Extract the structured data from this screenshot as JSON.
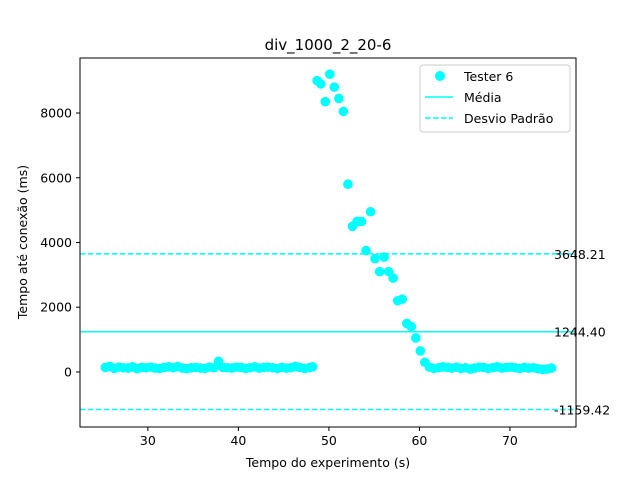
{
  "chart_data": {
    "type": "scatter",
    "title": "div_1000_2_20-6",
    "xlabel": "Tempo do experimento (s)",
    "ylabel": "Tempo até conexão (ms)",
    "xlim": [
      22.5,
      77.3
    ],
    "ylim": [
      -1700,
      9700
    ],
    "xticks": [
      30,
      40,
      50,
      60,
      70
    ],
    "yticks": [
      0,
      2000,
      4000,
      6000,
      8000
    ],
    "grid": false,
    "legend_position": "top-right",
    "colors": {
      "series": "#00ffff",
      "axes": "#000000"
    },
    "series": [
      {
        "name": "Tester 6",
        "x": [
          25.3,
          25.8,
          26.3,
          26.8,
          27.3,
          27.8,
          28.3,
          28.8,
          29.3,
          29.8,
          30.3,
          30.8,
          31.3,
          31.8,
          32.3,
          32.8,
          33.3,
          33.8,
          34.3,
          34.8,
          35.3,
          35.8,
          36.3,
          36.8,
          37.3,
          37.8,
          38.3,
          38.8,
          39.3,
          39.8,
          40.3,
          40.8,
          41.3,
          41.8,
          42.3,
          42.8,
          43.3,
          43.8,
          44.3,
          44.8,
          45.3,
          45.8,
          46.3,
          46.8,
          47.3,
          47.8,
          48.2,
          48.7,
          49.1,
          49.6,
          50.1,
          50.6,
          51.1,
          51.6,
          52.1,
          52.6,
          53.1,
          53.6,
          54.1,
          54.6,
          55.1,
          55.6,
          56.1,
          56.6,
          57.1,
          57.6,
          58.1,
          58.6,
          59.1,
          59.6,
          60.1,
          60.6,
          61.1,
          61.6,
          62.1,
          62.6,
          63.1,
          63.6,
          64.1,
          64.6,
          65.1,
          65.6,
          66.1,
          66.6,
          67.1,
          67.6,
          68.1,
          68.6,
          69.1,
          69.6,
          70.1,
          70.6,
          71.1,
          71.6,
          72.1,
          72.6,
          73.1,
          73.6,
          74.1,
          74.6
        ],
        "y": [
          140,
          170,
          110,
          150,
          130,
          120,
          160,
          100,
          140,
          130,
          150,
          120,
          110,
          140,
          160,
          130,
          170,
          120,
          100,
          130,
          140,
          120,
          110,
          150,
          130,
          330,
          140,
          130,
          120,
          150,
          140,
          110,
          130,
          160,
          120,
          140,
          150,
          130,
          110,
          140,
          120,
          130,
          170,
          140,
          110,
          130,
          160,
          9000,
          8900,
          8350,
          9200,
          8800,
          8450,
          8050,
          5800,
          4500,
          4650,
          4650,
          3750,
          4950,
          3500,
          3100,
          3550,
          3100,
          2900,
          2200,
          2250,
          1500,
          1400,
          1050,
          650,
          300,
          150,
          110,
          130,
          160,
          140,
          120,
          150,
          110,
          130,
          90,
          120,
          150,
          140,
          110,
          130,
          160,
          120,
          140,
          150,
          130,
          110,
          140,
          120,
          130,
          100,
          80,
          90,
          120
        ]
      }
    ],
    "reference_lines": [
      {
        "name": "Média",
        "value": 1244.4,
        "label": "1244.40",
        "style": "solid"
      },
      {
        "name": "Desvio Padrão",
        "value": 3648.21,
        "label": "3648.21",
        "style": "dashed"
      },
      {
        "name": "Desvio Padrão",
        "value": -1159.42,
        "label": "-1159.42",
        "style": "dashed"
      }
    ],
    "legend": [
      "Tester 6",
      "Média",
      "Desvio Padrão"
    ]
  }
}
